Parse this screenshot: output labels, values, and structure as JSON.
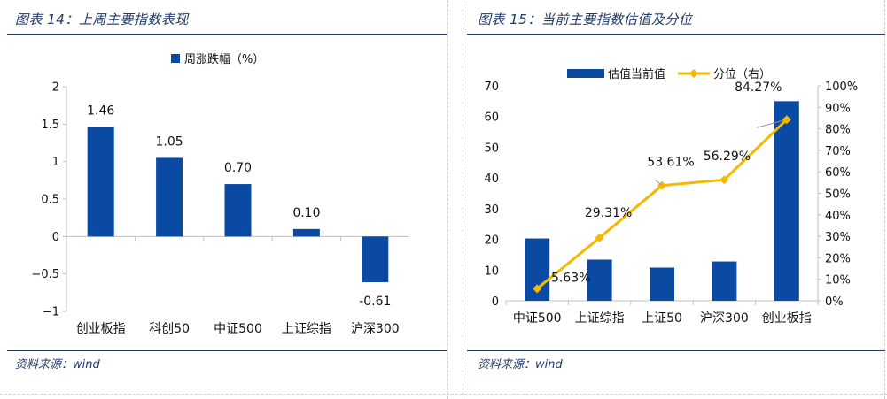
{
  "left": {
    "title": "图表 14：上周主要指数表现",
    "source": "资料来源：wind"
  },
  "right": {
    "title": "图表 15：当前主要指数估值及分位",
    "source": "资料来源：wind"
  },
  "colors": {
    "bar": "#0b4aa2",
    "line": "#f5b800",
    "title": "#1f3a68",
    "axis": "#bfbfbf"
  },
  "chart_data": [
    {
      "type": "bar",
      "legend": [
        "周涨跌幅（%）"
      ],
      "legend_position": "top",
      "categories": [
        "创业板指",
        "科创50",
        "中证500",
        "上证综指",
        "沪深300"
      ],
      "series": [
        {
          "name": "周涨跌幅（%）",
          "values": [
            1.46,
            1.05,
            0.7,
            0.1,
            -0.61
          ]
        }
      ],
      "data_labels": [
        "1.46",
        "1.05",
        "0.70",
        "0.10",
        "-0.61"
      ],
      "ylim": [
        -1,
        2
      ],
      "yticks": [
        "-1",
        "-0.5",
        "0",
        "0.5",
        "1",
        "1.5",
        "2"
      ],
      "grid": false
    },
    {
      "type": "bar+line",
      "legend": [
        "估值当前值",
        "分位（右）"
      ],
      "legend_position": "top",
      "categories": [
        "中证500",
        "上证综指",
        "上证50",
        "沪深300",
        "创业板指"
      ],
      "series": [
        {
          "name": "估值当前值",
          "type": "bar",
          "axis": "left",
          "values": [
            20.3,
            13.4,
            10.8,
            12.8,
            65.0
          ]
        },
        {
          "name": "分位（右）",
          "type": "line",
          "axis": "right",
          "values": [
            5.63,
            29.31,
            53.61,
            56.29,
            84.27
          ]
        }
      ],
      "line_labels": [
        "5.63%",
        "29.31%",
        "53.61%",
        "56.29%",
        "84.27%"
      ],
      "ylim_left": [
        0,
        70
      ],
      "yticks_left": [
        "0",
        "10",
        "20",
        "30",
        "40",
        "50",
        "60",
        "70"
      ],
      "ylim_right": [
        0,
        100
      ],
      "yticks_right": [
        "0%",
        "10%",
        "20%",
        "30%",
        "40%",
        "50%",
        "60%",
        "70%",
        "80%",
        "90%",
        "100%"
      ],
      "grid": false
    }
  ]
}
